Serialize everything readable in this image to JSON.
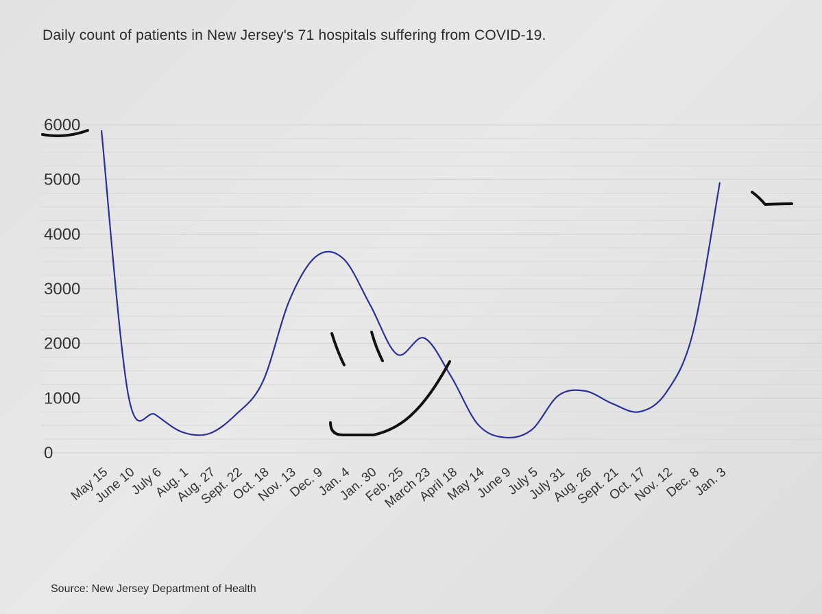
{
  "chart_data": {
    "type": "line",
    "title": "Daily count of patients in New Jersey's 71 hospitals suffering from COVID-19.",
    "source": "Source: New Jersey Department of Health",
    "xlabel": "",
    "ylabel": "",
    "ylim": [
      0,
      6000
    ],
    "yticks": [
      "0",
      "1000",
      "2000",
      "3000",
      "4000",
      "5000",
      "6000"
    ],
    "grid": true,
    "legend": "none",
    "color": "#2b2f9c",
    "categories": [
      "May 15",
      "June 10",
      "July 6",
      "Aug. 1",
      "Aug. 27",
      "Sept. 22",
      "Oct. 18",
      "Nov. 13",
      "Dec. 9",
      "Jan. 4",
      "Jan. 30",
      "Feb. 25",
      "March 23",
      "April 18",
      "May 14",
      "June 9",
      "July 5",
      "July 31",
      "Aug. 26",
      "Sept. 21",
      "Oct. 17",
      "Nov. 12",
      "Dec. 8",
      "Jan. 3"
    ],
    "series": [
      {
        "values": [
          5900,
          1050,
          700,
          380,
          350,
          700,
          1300,
          2800,
          3600,
          3550,
          2700,
          1800,
          2100,
          1400,
          520,
          280,
          420,
          1050,
          1130,
          900,
          750,
          1100,
          2200,
          4950
        ]
      }
    ]
  }
}
